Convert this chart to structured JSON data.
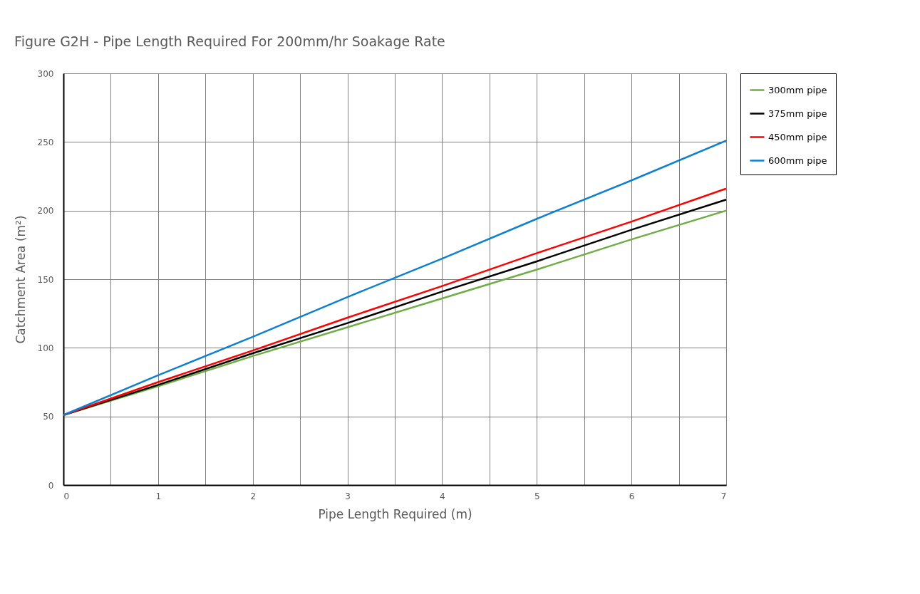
{
  "chart_data": {
    "type": "line",
    "title": "Figure G2H - Pipe Length Required For 200mm/hr Soakage Rate",
    "xlabel": "Pipe Length Required (m)",
    "ylabel": "Catchment Area (m²)",
    "series": [
      {
        "name": "300mm pipe",
        "color": "#70ad47",
        "x": [
          0,
          1,
          2,
          3,
          4,
          5,
          6,
          7
        ],
        "values": [
          51,
          72,
          94,
          115,
          136,
          157,
          179,
          200
        ]
      },
      {
        "name": "375mm pipe",
        "color": "#000000",
        "x": [
          0,
          1,
          2,
          3,
          4,
          5,
          6,
          7
        ],
        "values": [
          51,
          73,
          96,
          118,
          141,
          163,
          186,
          208
        ]
      },
      {
        "name": "450mm pipe",
        "color": "#ff0000",
        "x": [
          0,
          1,
          2,
          3,
          4,
          5,
          6,
          7
        ],
        "values": [
          51,
          75,
          98,
          122,
          145,
          169,
          192,
          216
        ]
      },
      {
        "name": "600mm pipe",
        "color": "#0f7fd0",
        "x": [
          0,
          1,
          2,
          3,
          4,
          5,
          6,
          7
        ],
        "values": [
          51,
          80,
          108,
          137,
          165,
          194,
          222,
          251
        ]
      }
    ],
    "xlim": [
      0,
      7
    ],
    "xticks": [
      0,
      {
        "value": 0.5,
        "label": null
      },
      1,
      {
        "value": 1.5,
        "label": null
      },
      2,
      {
        "value": 2.5,
        "label": null
      },
      3,
      {
        "value": 3.5,
        "label": null
      },
      4,
      {
        "value": 4.5,
        "label": null
      },
      5,
      {
        "value": 5.5,
        "label": null
      },
      6,
      {
        "value": 6.5,
        "label": null
      },
      7
    ],
    "ylim": [
      0,
      300
    ],
    "yticks": [
      0,
      50,
      100,
      150,
      200,
      250,
      300
    ],
    "grid": true,
    "legend": "right",
    "marker": "none",
    "line_style": "solid"
  }
}
